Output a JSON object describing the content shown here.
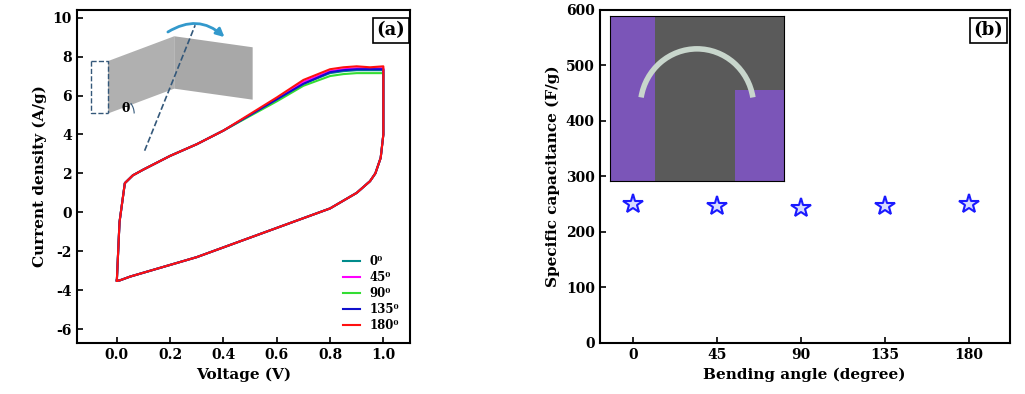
{
  "chart_data": [
    {
      "type": "line",
      "title": "(a)",
      "x_label": "Voltage (V)",
      "y_label": "Current density (A/g)",
      "xlim": [
        -0.15,
        1.1
      ],
      "xticks": [
        0.0,
        0.2,
        0.4,
        0.6,
        0.8,
        1.0
      ],
      "ylim": [
        -6.7,
        10.4
      ],
      "yticks": [
        -6,
        -4,
        -2,
        0,
        2,
        4,
        6,
        8,
        10
      ],
      "legend": "lower right",
      "annotations": [
        "θ"
      ],
      "x": [
        0.0,
        0.01,
        0.03,
        0.06,
        0.1,
        0.2,
        0.3,
        0.4,
        0.5,
        0.6,
        0.7,
        0.8,
        0.85,
        0.9,
        0.95,
        1.0,
        1.0,
        0.99,
        0.97,
        0.95,
        0.9,
        0.8,
        0.7,
        0.6,
        0.5,
        0.4,
        0.3,
        0.2,
        0.1,
        0.05,
        0.01,
        0.0
      ],
      "series": [
        {
          "name": "0⁰",
          "color": "#008b8b",
          "values": [
            -3.5,
            -0.5,
            1.5,
            1.9,
            2.2,
            2.9,
            3.5,
            4.2,
            5.0,
            5.8,
            6.6,
            7.15,
            7.25,
            7.3,
            7.3,
            7.3,
            4.0,
            2.8,
            2.0,
            1.6,
            1.0,
            0.2,
            -0.3,
            -0.8,
            -1.3,
            -1.8,
            -2.3,
            -2.7,
            -3.1,
            -3.3,
            -3.5,
            -3.5
          ]
        },
        {
          "name": "45⁰",
          "color": "#ff00ff",
          "values": [
            -3.5,
            -0.5,
            1.5,
            1.9,
            2.2,
            2.9,
            3.5,
            4.2,
            5.0,
            5.8,
            6.7,
            7.25,
            7.35,
            7.4,
            7.4,
            7.4,
            4.0,
            2.8,
            2.0,
            1.6,
            1.0,
            0.2,
            -0.3,
            -0.8,
            -1.3,
            -1.8,
            -2.3,
            -2.7,
            -3.1,
            -3.3,
            -3.5,
            -3.5
          ]
        },
        {
          "name": "90⁰",
          "color": "#33dd33",
          "values": [
            -3.5,
            -0.5,
            1.5,
            1.9,
            2.2,
            2.9,
            3.5,
            4.2,
            4.95,
            5.7,
            6.5,
            7.0,
            7.1,
            7.15,
            7.15,
            7.15,
            4.0,
            2.8,
            2.0,
            1.6,
            1.0,
            0.2,
            -0.3,
            -0.8,
            -1.3,
            -1.8,
            -2.3,
            -2.7,
            -3.1,
            -3.3,
            -3.5,
            -3.5
          ]
        },
        {
          "name": "135⁰",
          "color": "#1010cc",
          "values": [
            -3.5,
            -0.5,
            1.5,
            1.9,
            2.2,
            2.9,
            3.5,
            4.2,
            5.0,
            5.8,
            6.6,
            7.2,
            7.3,
            7.35,
            7.35,
            7.35,
            4.0,
            2.8,
            2.0,
            1.6,
            1.0,
            0.2,
            -0.3,
            -0.8,
            -1.3,
            -1.8,
            -2.3,
            -2.7,
            -3.1,
            -3.3,
            -3.5,
            -3.5
          ]
        },
        {
          "name": "180⁰",
          "color": "#ff1010",
          "values": [
            -3.5,
            -0.5,
            1.5,
            1.9,
            2.2,
            2.9,
            3.5,
            4.2,
            5.05,
            5.9,
            6.8,
            7.35,
            7.45,
            7.5,
            7.45,
            7.5,
            4.0,
            2.8,
            2.0,
            1.6,
            1.0,
            0.2,
            -0.3,
            -0.8,
            -1.3,
            -1.8,
            -2.3,
            -2.7,
            -3.1,
            -3.3,
            -3.5,
            -3.5
          ]
        }
      ]
    },
    {
      "type": "scatter",
      "title": "(b)",
      "x_label": "Bending angle (degree)",
      "y_label": "Specific capacitance (F/g)",
      "xlim": [
        -18,
        202
      ],
      "xticks": [
        0,
        45,
        90,
        135,
        180
      ],
      "ylim": [
        0,
        600
      ],
      "yticks": [
        0,
        100,
        200,
        300,
        400,
        500,
        600
      ],
      "marker": "star",
      "color": "#1a1aff",
      "x": [
        0,
        45,
        90,
        135,
        180
      ],
      "values": [
        250,
        246,
        242,
        246,
        250
      ]
    }
  ]
}
